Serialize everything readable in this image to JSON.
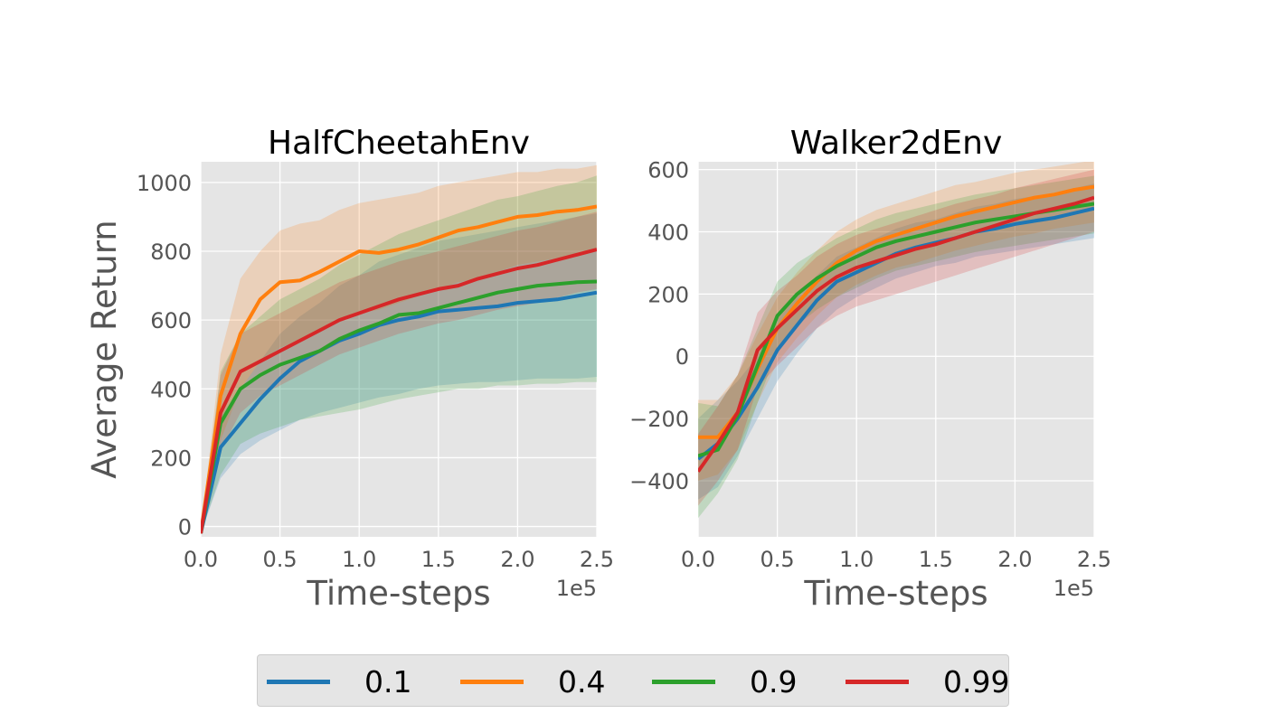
{
  "colors": {
    "panel_bg": "#e5e5e5",
    "grid": "#ffffff",
    "tick_text": "#555555",
    "title_text": "#000000",
    "series": [
      "#1f77b4",
      "#ff7f0e",
      "#2ca02c",
      "#d62728"
    ]
  },
  "legend": {
    "placement": "bottom-center",
    "items": [
      {
        "label": "0.1",
        "color": "#1f77b4"
      },
      {
        "label": "0.4",
        "color": "#ff7f0e"
      },
      {
        "label": "0.9",
        "color": "#2ca02c"
      },
      {
        "label": "0.99",
        "color": "#d62728"
      }
    ]
  },
  "chart_data": [
    {
      "type": "line",
      "title": "HalfCheetahEnv",
      "xlabel": "Time-steps",
      "ylabel": "Average Return",
      "x_offset_label": "1e5",
      "xlim": [
        0,
        250000
      ],
      "ylim": [
        -30,
        1060
      ],
      "xticks": [
        0,
        50000,
        100000,
        150000,
        200000,
        250000
      ],
      "xtick_labels": [
        "0.0",
        "0.5",
        "1.0",
        "1.5",
        "2.0",
        "2.5"
      ],
      "yticks": [
        0,
        200,
        400,
        600,
        800,
        1000
      ],
      "ytick_labels": [
        "0",
        "200",
        "400",
        "600",
        "800",
        "1000"
      ],
      "grid": true,
      "x": [
        0,
        12500,
        25000,
        37500,
        50000,
        62500,
        75000,
        87500,
        100000,
        112500,
        125000,
        137500,
        150000,
        162500,
        175000,
        187500,
        200000,
        212500,
        225000,
        237500,
        250000
      ],
      "series": [
        {
          "name": "0.1",
          "values": [
            -20,
            230,
            300,
            370,
            430,
            480,
            510,
            540,
            560,
            585,
            600,
            610,
            625,
            630,
            635,
            640,
            650,
            655,
            660,
            670,
            680
          ],
          "lower": [
            -20,
            140,
            210,
            250,
            280,
            310,
            330,
            345,
            360,
            375,
            385,
            400,
            410,
            415,
            420,
            420,
            425,
            430,
            430,
            430,
            435
          ],
          "upper": [
            -20,
            320,
            400,
            480,
            560,
            610,
            650,
            700,
            730,
            770,
            790,
            810,
            830,
            840,
            850,
            860,
            870,
            880,
            890,
            900,
            910
          ]
        },
        {
          "name": "0.4",
          "values": [
            -20,
            380,
            560,
            660,
            710,
            715,
            740,
            770,
            800,
            795,
            805,
            820,
            840,
            860,
            870,
            885,
            900,
            905,
            915,
            920,
            930
          ],
          "lower": [
            -20,
            250,
            400,
            480,
            520,
            540,
            570,
            600,
            620,
            630,
            650,
            670,
            690,
            710,
            720,
            740,
            760,
            770,
            780,
            790,
            800
          ],
          "upper": [
            -20,
            500,
            720,
            800,
            860,
            880,
            890,
            920,
            940,
            950,
            960,
            970,
            990,
            1000,
            1010,
            1020,
            1030,
            1030,
            1040,
            1040,
            1050
          ]
        },
        {
          "name": "0.9",
          "values": [
            -20,
            300,
            400,
            440,
            470,
            490,
            510,
            545,
            570,
            590,
            615,
            620,
            635,
            650,
            665,
            680,
            690,
            700,
            705,
            710,
            712
          ],
          "lower": [
            -20,
            150,
            240,
            270,
            290,
            310,
            320,
            330,
            340,
            355,
            370,
            380,
            390,
            400,
            400,
            410,
            410,
            415,
            415,
            420,
            420
          ],
          "upper": [
            -20,
            450,
            560,
            610,
            660,
            690,
            720,
            760,
            790,
            820,
            850,
            870,
            890,
            910,
            930,
            950,
            960,
            975,
            990,
            1000,
            1020
          ]
        },
        {
          "name": "0.99",
          "values": [
            -20,
            330,
            450,
            480,
            510,
            540,
            570,
            600,
            620,
            640,
            660,
            675,
            690,
            700,
            720,
            735,
            750,
            760,
            775,
            790,
            805
          ],
          "lower": [
            -20,
            220,
            330,
            380,
            410,
            440,
            470,
            500,
            520,
            540,
            560,
            575,
            590,
            600,
            615,
            630,
            640,
            650,
            665,
            680,
            690
          ],
          "upper": [
            -20,
            440,
            560,
            590,
            620,
            650,
            680,
            710,
            730,
            750,
            770,
            785,
            800,
            815,
            830,
            845,
            860,
            870,
            885,
            900,
            915
          ]
        }
      ]
    },
    {
      "type": "line",
      "title": "Walker2dEnv",
      "xlabel": "Time-steps",
      "ylabel": "",
      "x_offset_label": "1e5",
      "xlim": [
        0,
        250000
      ],
      "ylim": [
        -580,
        625
      ],
      "xticks": [
        0,
        50000,
        100000,
        150000,
        200000,
        250000
      ],
      "xtick_labels": [
        "0.0",
        "0.5",
        "1.0",
        "1.5",
        "2.0",
        "2.5"
      ],
      "yticks": [
        -400,
        -200,
        0,
        200,
        400,
        600
      ],
      "ytick_labels": [
        "−400",
        "−200",
        "0",
        "200",
        "400",
        "600"
      ],
      "grid": true,
      "x": [
        0,
        12500,
        25000,
        37500,
        50000,
        62500,
        75000,
        87500,
        100000,
        112500,
        125000,
        137500,
        150000,
        162500,
        175000,
        187500,
        200000,
        212500,
        225000,
        237500,
        250000
      ],
      "series": [
        {
          "name": "0.1",
          "values": [
            -330,
            -280,
            -200,
            -100,
            20,
            100,
            180,
            240,
            270,
            300,
            330,
            350,
            365,
            380,
            400,
            410,
            425,
            435,
            445,
            460,
            475
          ],
          "lower": [
            -460,
            -420,
            -320,
            -200,
            -80,
            10,
            90,
            150,
            190,
            220,
            250,
            270,
            290,
            300,
            320,
            330,
            340,
            350,
            360,
            370,
            380
          ],
          "upper": [
            -200,
            -140,
            -80,
            0,
            120,
            190,
            260,
            320,
            350,
            380,
            410,
            430,
            440,
            460,
            480,
            490,
            505,
            515,
            525,
            540,
            555
          ]
        },
        {
          "name": "0.4",
          "values": [
            -260,
            -260,
            -180,
            -40,
            90,
            170,
            240,
            300,
            340,
            370,
            390,
            410,
            430,
            450,
            465,
            480,
            495,
            510,
            520,
            535,
            545
          ],
          "lower": [
            -400,
            -380,
            -300,
            -150,
            -20,
            60,
            130,
            190,
            230,
            260,
            285,
            300,
            320,
            340,
            355,
            370,
            385,
            395,
            410,
            420,
            430
          ],
          "upper": [
            -140,
            -140,
            -60,
            70,
            190,
            270,
            340,
            400,
            440,
            470,
            490,
            510,
            530,
            550,
            560,
            575,
            590,
            600,
            610,
            620,
            630
          ]
        },
        {
          "name": "0.9",
          "values": [
            -320,
            -300,
            -190,
            -30,
            130,
            200,
            250,
            290,
            320,
            350,
            370,
            385,
            400,
            415,
            430,
            440,
            450,
            460,
            470,
            480,
            490
          ],
          "lower": [
            -520,
            -440,
            -330,
            -150,
            20,
            100,
            150,
            190,
            220,
            250,
            275,
            290,
            305,
            320,
            335,
            345,
            355,
            365,
            375,
            385,
            395
          ],
          "upper": [
            -150,
            -160,
            -60,
            90,
            240,
            300,
            340,
            380,
            410,
            440,
            460,
            475,
            490,
            505,
            520,
            530,
            540,
            550,
            560,
            570,
            580
          ]
        },
        {
          "name": "0.99",
          "values": [
            -370,
            -280,
            -180,
            20,
            90,
            150,
            210,
            255,
            285,
            305,
            325,
            345,
            360,
            380,
            400,
            420,
            440,
            460,
            475,
            490,
            510
          ],
          "lower": [
            -480,
            -400,
            -300,
            -100,
            -30,
            30,
            90,
            130,
            160,
            180,
            200,
            220,
            240,
            260,
            280,
            300,
            320,
            340,
            360,
            380,
            400
          ],
          "upper": [
            -250,
            -160,
            -60,
            140,
            210,
            260,
            320,
            360,
            390,
            410,
            430,
            450,
            470,
            490,
            505,
            520,
            540,
            555,
            570,
            585,
            600
          ]
        }
      ]
    }
  ]
}
